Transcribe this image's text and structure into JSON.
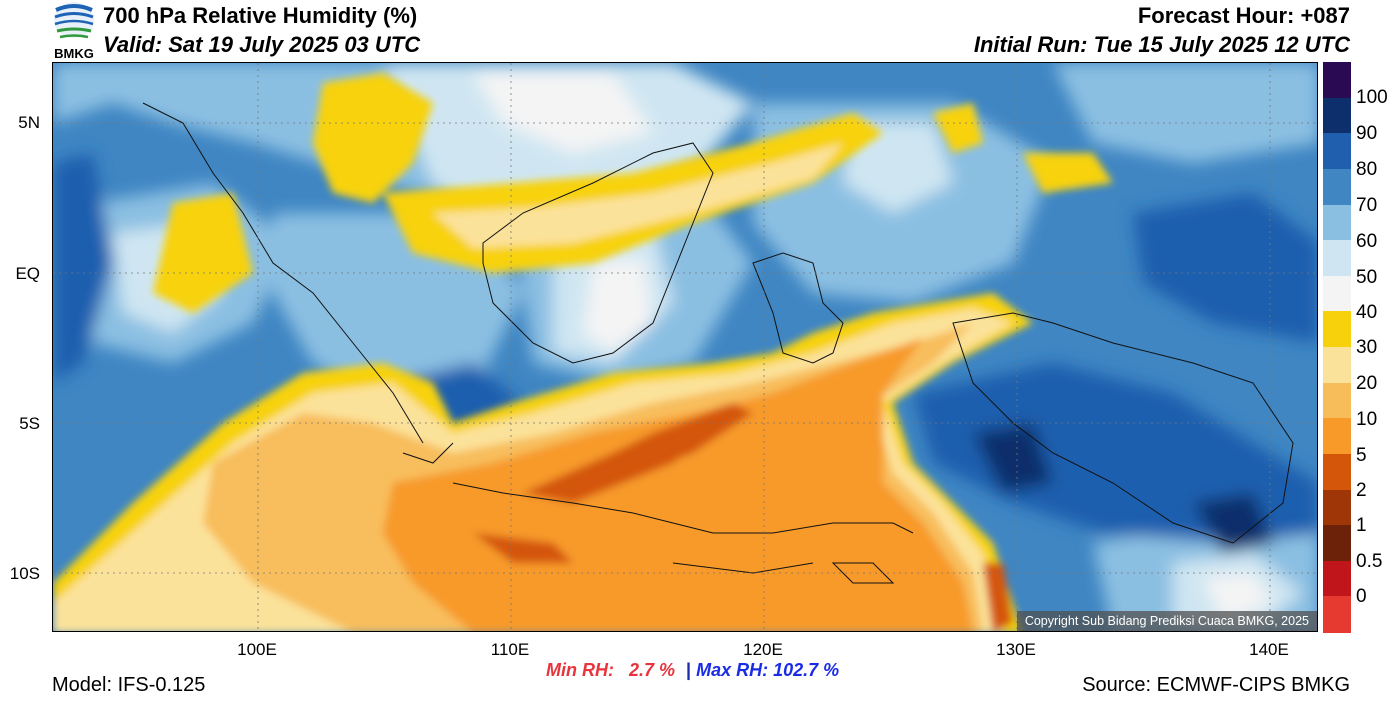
{
  "header": {
    "title": "700 hPa Relative Humidity (%)",
    "valid": "Valid: Sat 19 July 2025 03 UTC",
    "forecast_hour": "Forecast Hour: +087",
    "initial_run": "Initial Run: Tue 15 July 2025 12 UTC",
    "logo_text": "BMKG"
  },
  "map": {
    "lat_labels": [
      "5N",
      "EQ",
      "5S",
      "10S"
    ],
    "lon_labels": [
      "100E",
      "110E",
      "120E",
      "130E",
      "140E"
    ],
    "copyright": "Copyright Sub Bidang Prediksi Cuaca BMKG, 2025"
  },
  "colorbar": {
    "labels": [
      "100",
      "90",
      "80",
      "70",
      "60",
      "50",
      "40",
      "30",
      "20",
      "10",
      "5",
      "2",
      "1",
      "0.5",
      "0"
    ],
    "colors": [
      "#2a0a52",
      "#0d2f6b",
      "#1f5fae",
      "#3f86c3",
      "#8bbfe2",
      "#cfe6f2",
      "#f4f4f4",
      "#f7d20c",
      "#fbe29a",
      "#f8bd5b",
      "#f79a2a",
      "#d4560b",
      "#9e3608",
      "#6b2209",
      "#c0161b",
      "#e63a30"
    ]
  },
  "stats": {
    "min_label": "Min RH:",
    "min_value": "2.7 %",
    "sep": "|",
    "max_label": "Max RH:",
    "max_value": "102.7 %"
  },
  "footer": {
    "model": "Model: IFS-0.125",
    "source": "Source: ECMWF-CIPS BMKG"
  }
}
